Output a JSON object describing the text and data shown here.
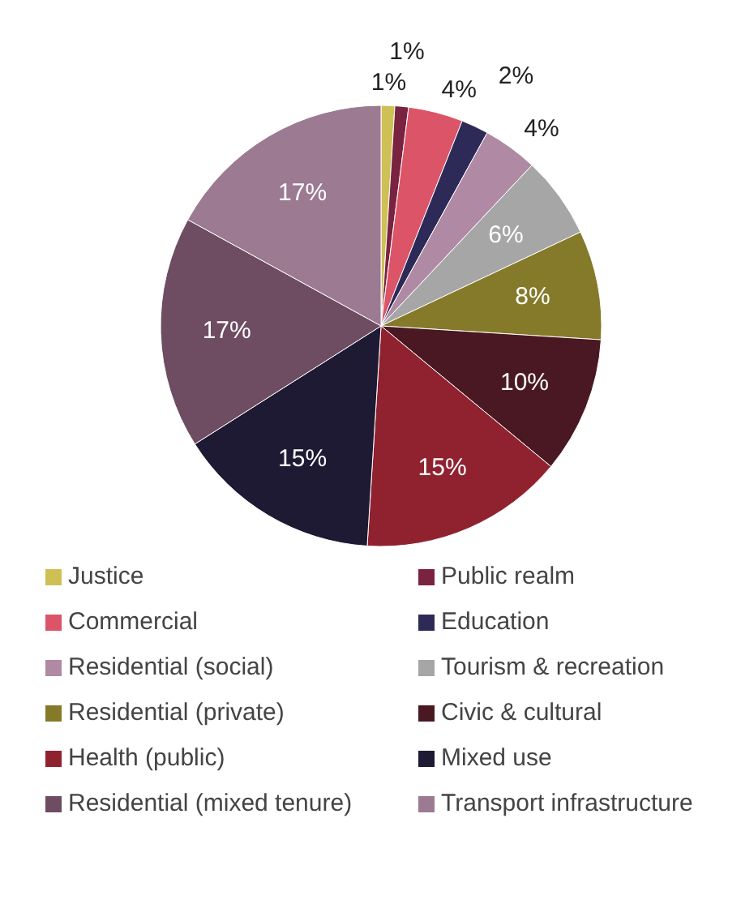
{
  "chart_data": {
    "type": "pie",
    "categories": [
      "Justice",
      "Public realm",
      "Commercial",
      "Education",
      "Residential (social)",
      "Tourism & recreation",
      "Residential (private)",
      "Civic & cultural",
      "Health (public)",
      "Mixed use",
      "Residential (mixed tenure)",
      "Transport infrastructure"
    ],
    "values": [
      1,
      1,
      4,
      2,
      4,
      6,
      8,
      10,
      15,
      15,
      17,
      17
    ],
    "colors": [
      "#cfc055",
      "#7a2340",
      "#dc5468",
      "#2e2a58",
      "#b08aa4",
      "#a6a6a6",
      "#857a2a",
      "#4a1822",
      "#902230",
      "#1e1a34",
      "#6e4c62",
      "#9c7a92"
    ],
    "value_labels": [
      "1%",
      "1%",
      "4%",
      "2%",
      "4%",
      "6%",
      "8%",
      "10%",
      "15%",
      "15%",
      "17%",
      "17%"
    ],
    "legend": "bottom"
  }
}
